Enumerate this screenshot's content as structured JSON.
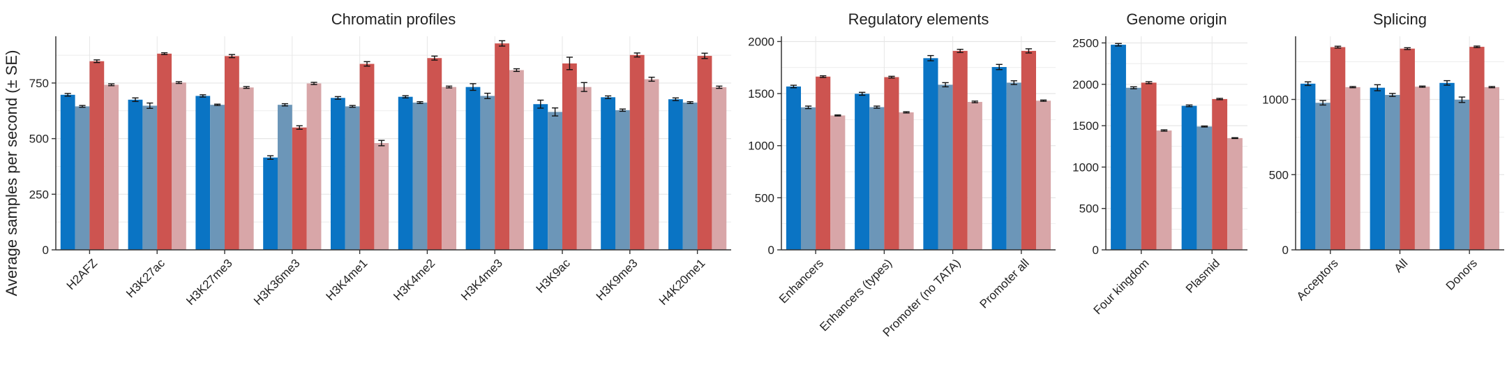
{
  "figure": {
    "ylabel": "Average samples per second (± SE)"
  },
  "colors": {
    "series": [
      "#0a74c4",
      "#6c96b8",
      "#cd5450",
      "#d8a6a8"
    ],
    "grid": "#e6e6e6",
    "axis": "#333333",
    "errorbar": "#111111"
  },
  "chart_data": [
    {
      "type": "bar",
      "title": "Chromatin profiles",
      "categories": [
        "H2AFZ",
        "H3K27ac",
        "H3K27me3",
        "H3K36me3",
        "H3K4me1",
        "H3K4me2",
        "H3K4me3",
        "H3K9ac",
        "H3K9me3",
        "H4K20me1"
      ],
      "series": [
        {
          "values": [
            697,
            675,
            692,
            415,
            683,
            688,
            732,
            655,
            686,
            677
          ],
          "errors": [
            6,
            8,
            5,
            8,
            6,
            5,
            15,
            18,
            6,
            6
          ]
        },
        {
          "values": [
            645,
            648,
            652,
            652,
            645,
            662,
            692,
            620,
            628,
            662
          ],
          "errors": [
            4,
            12,
            3,
            5,
            4,
            4,
            12,
            18,
            5,
            4
          ]
        },
        {
          "values": [
            848,
            882,
            871,
            550,
            836,
            862,
            928,
            838,
            876,
            872
          ],
          "errors": [
            6,
            4,
            7,
            8,
            10,
            9,
            12,
            28,
            9,
            12
          ]
        },
        {
          "values": [
            742,
            752,
            730,
            748,
            480,
            732,
            808,
            732,
            767,
            731
          ],
          "errors": [
            4,
            4,
            4,
            5,
            12,
            4,
            6,
            20,
            9,
            5
          ]
        }
      ],
      "ylim": [
        0,
        960
      ],
      "yticks": [
        0,
        250,
        500,
        750
      ],
      "grid": true
    },
    {
      "type": "bar",
      "title": "Regulatory elements",
      "categories": [
        "Enhancers",
        "Enhancers (types)",
        "Promoter (no TATA)",
        "Promoter all"
      ],
      "series": [
        {
          "values": [
            1568,
            1498,
            1840,
            1755
          ],
          "errors": [
            12,
            14,
            25,
            25
          ]
        },
        {
          "values": [
            1368,
            1370,
            1585,
            1605
          ],
          "errors": [
            12,
            10,
            20,
            18
          ]
        },
        {
          "values": [
            1663,
            1658,
            1910,
            1910
          ],
          "errors": [
            8,
            8,
            15,
            20
          ]
        },
        {
          "values": [
            1290,
            1320,
            1420,
            1432
          ],
          "errors": [
            5,
            6,
            8,
            6
          ]
        }
      ],
      "ylim": [
        0,
        2050
      ],
      "yticks": [
        0,
        500,
        1000,
        1500,
        2000
      ],
      "grid": true
    },
    {
      "type": "bar",
      "title": "Genome origin",
      "categories": [
        "Four kingdom",
        "Plasmid"
      ],
      "series": [
        {
          "values": [
            2478,
            1740
          ],
          "errors": [
            15,
            10
          ]
        },
        {
          "values": [
            1958,
            1490
          ],
          "errors": [
            12,
            6
          ]
        },
        {
          "values": [
            2020,
            1822
          ],
          "errors": [
            12,
            8
          ]
        },
        {
          "values": [
            1442,
            1350
          ],
          "errors": [
            8,
            5
          ]
        }
      ],
      "ylim": [
        0,
        2580
      ],
      "yticks": [
        0,
        500,
        1000,
        1500,
        2000,
        2500
      ],
      "grid": true
    },
    {
      "type": "bar",
      "title": "Splicing",
      "categories": [
        "Acceptors",
        "All",
        "Donors"
      ],
      "series": [
        {
          "values": [
            1105,
            1078,
            1110
          ],
          "errors": [
            12,
            20,
            15
          ]
        },
        {
          "values": [
            978,
            1030,
            998
          ],
          "errors": [
            15,
            10,
            18
          ]
        },
        {
          "values": [
            1348,
            1338,
            1350
          ],
          "errors": [
            6,
            6,
            5
          ]
        },
        {
          "values": [
            1082,
            1085,
            1082
          ],
          "errors": [
            4,
            4,
            4
          ]
        }
      ],
      "ylim": [
        0,
        1420
      ],
      "yticks": [
        0,
        500,
        1000
      ],
      "grid": true
    }
  ]
}
